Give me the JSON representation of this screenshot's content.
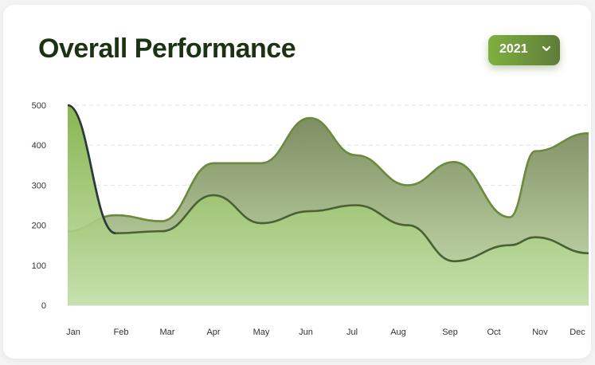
{
  "header": {
    "title": "Overall Performance",
    "year": "2021",
    "year_icon": "chevron-down-icon"
  },
  "chart_data": {
    "type": "area",
    "categories": [
      "Jan",
      "Feb",
      "Mar",
      "Apr",
      "May",
      "Jun",
      "Jul",
      "Aug",
      "Sep",
      "Oct",
      "Nov",
      "Dec"
    ],
    "ylim": [
      0,
      500
    ],
    "yticks": [
      0,
      100,
      200,
      300,
      400,
      500
    ],
    "grid": true,
    "series": [
      {
        "values": [
          185,
          225,
          210,
          355,
          355,
          468,
          375,
          300,
          358,
          220,
          385,
          430
        ],
        "color": "#6b8a3e"
      },
      {
        "values": [
          500,
          180,
          185,
          275,
          205,
          235,
          250,
          200,
          110,
          150,
          170,
          130
        ],
        "color": "#4a6133"
      }
    ]
  }
}
